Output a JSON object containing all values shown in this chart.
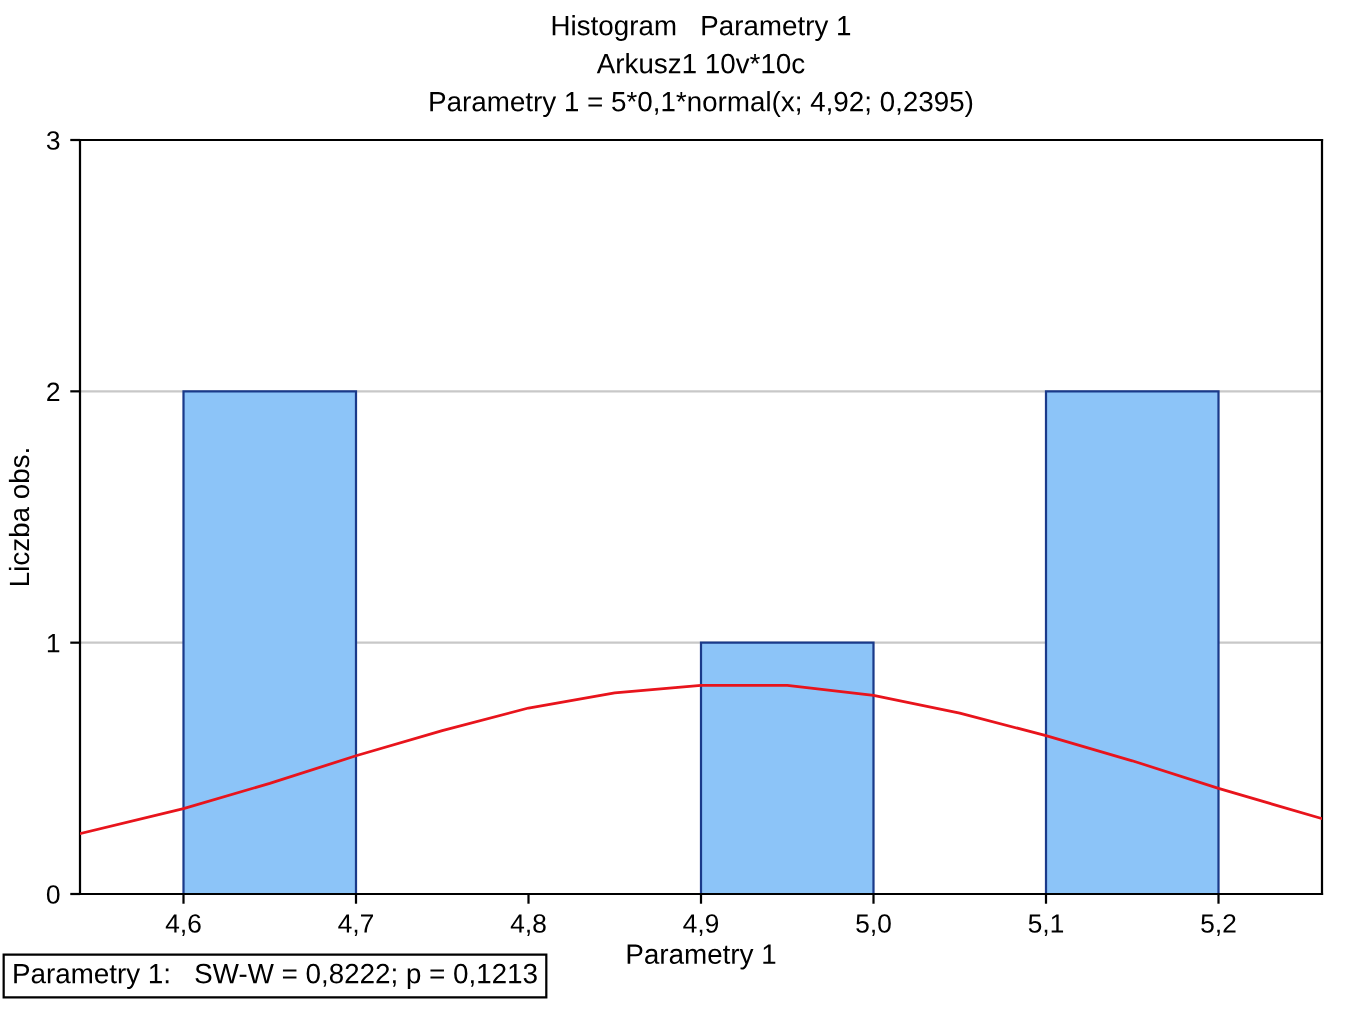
{
  "chart_data": {
    "type": "histogram",
    "title": "Histogram   Parametry 1",
    "subtitle": "Arkusz1 10v*10c\nParametry 1 = 5*0,1*normal(x; 4,92; 0,2395)",
    "xlabel": "Parametry 1",
    "ylabel": "Liczba obs.",
    "bins": [
      4.6,
      4.7,
      4.8,
      4.9,
      5.0,
      5.1,
      5.2
    ],
    "values": [
      2,
      0,
      0,
      1,
      0,
      2
    ],
    "color": "#8cc4f8",
    "series": [
      {
        "type": "line",
        "color": "#e8141c",
        "x": [
          4.54,
          4.6,
          4.65,
          4.7,
          4.75,
          4.8,
          4.85,
          4.9,
          4.92,
          4.95,
          5.0,
          5.05,
          5.1,
          5.15,
          5.2,
          5.26
        ],
        "values": [
          0.24,
          0.34,
          0.44,
          0.55,
          0.65,
          0.74,
          0.8,
          0.83,
          0.83,
          0.83,
          0.79,
          0.72,
          0.63,
          0.53,
          0.42,
          0.3
        ]
      }
    ],
    "xlim": [
      4.54,
      5.26
    ],
    "xticks": [
      {
        "value": 4.6,
        "label": "4,6"
      },
      {
        "value": 4.7,
        "label": "4,7"
      },
      {
        "value": 4.8,
        "label": "4,8"
      },
      {
        "value": 4.9,
        "label": "4,9"
      },
      {
        "value": 5.0,
        "label": "5,0"
      },
      {
        "value": 5.1,
        "label": "5,1"
      },
      {
        "value": 5.2,
        "label": "5,2"
      }
    ],
    "ylim": [
      0,
      3
    ],
    "yticks": [
      0,
      1,
      2,
      3
    ],
    "grid": "y",
    "annotations": [
      "Parametry 1:   SW-W = 0,8222; p = 0,1213"
    ]
  }
}
